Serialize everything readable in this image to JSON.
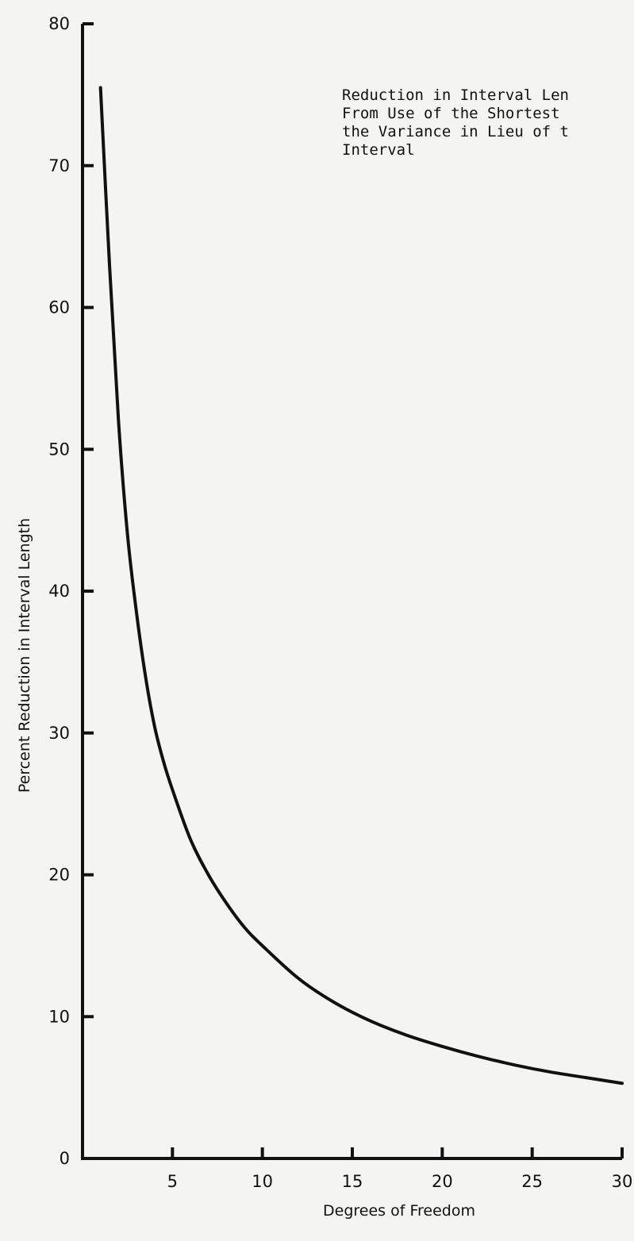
{
  "chart_data": {
    "type": "line",
    "title_lines": [
      "Reduction in Interval Len",
      "From Use of the Shortest",
      "the Variance in Lieu of t",
      "Interval"
    ],
    "xlabel": "Degrees of Freedom",
    "ylabel": "Percent Reduction in Interval Length",
    "xlim": [
      0,
      30
    ],
    "ylim": [
      0,
      80
    ],
    "x_ticks": [
      5,
      10,
      15,
      20,
      25,
      30
    ],
    "y_ticks": [
      0,
      10,
      20,
      30,
      40,
      50,
      60,
      70,
      80
    ],
    "grid": false,
    "series": [
      {
        "x": [
          1,
          1.5,
          2,
          2.5,
          3,
          3.5,
          4,
          4.5,
          5,
          6,
          7,
          8,
          9,
          10,
          12,
          14,
          16,
          18,
          20,
          22,
          24,
          26,
          28,
          30
        ],
        "y": [
          75.5,
          63,
          52,
          44,
          38.5,
          34,
          30.5,
          28,
          26,
          22.5,
          20,
          18,
          16.3,
          15,
          12.7,
          11,
          9.7,
          8.7,
          7.9,
          7.2,
          6.6,
          6.1,
          5.7,
          5.3
        ]
      }
    ]
  }
}
